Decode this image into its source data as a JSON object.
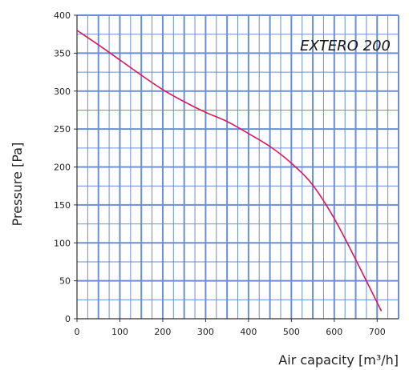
{
  "chart_data": {
    "type": "line",
    "title": "EXTERO 200",
    "xlabel": "Air capacity [m³/h]",
    "ylabel": "Pressure [Pa]",
    "xlim": [
      0,
      750
    ],
    "ylim": [
      0,
      400
    ],
    "x_ticks": [
      "0",
      "100",
      "200",
      "300",
      "400",
      "500",
      "600",
      "700"
    ],
    "y_ticks": [
      "0",
      "50",
      "100",
      "150",
      "200",
      "250",
      "300",
      "350",
      "400"
    ],
    "grid": true,
    "colors": {
      "series": "#e0145a",
      "grid": "#6b8fd6",
      "axis": "#333333"
    },
    "series": [
      {
        "x": [
          0,
          50,
          100,
          150,
          200,
          250,
          300,
          350,
          400,
          450,
          500,
          550,
          600,
          650,
          710
        ],
        "y": [
          380,
          361,
          341,
          321,
          302,
          286,
          272,
          260,
          244,
          227,
          205,
          176,
          132,
          78,
          10
        ]
      }
    ]
  }
}
